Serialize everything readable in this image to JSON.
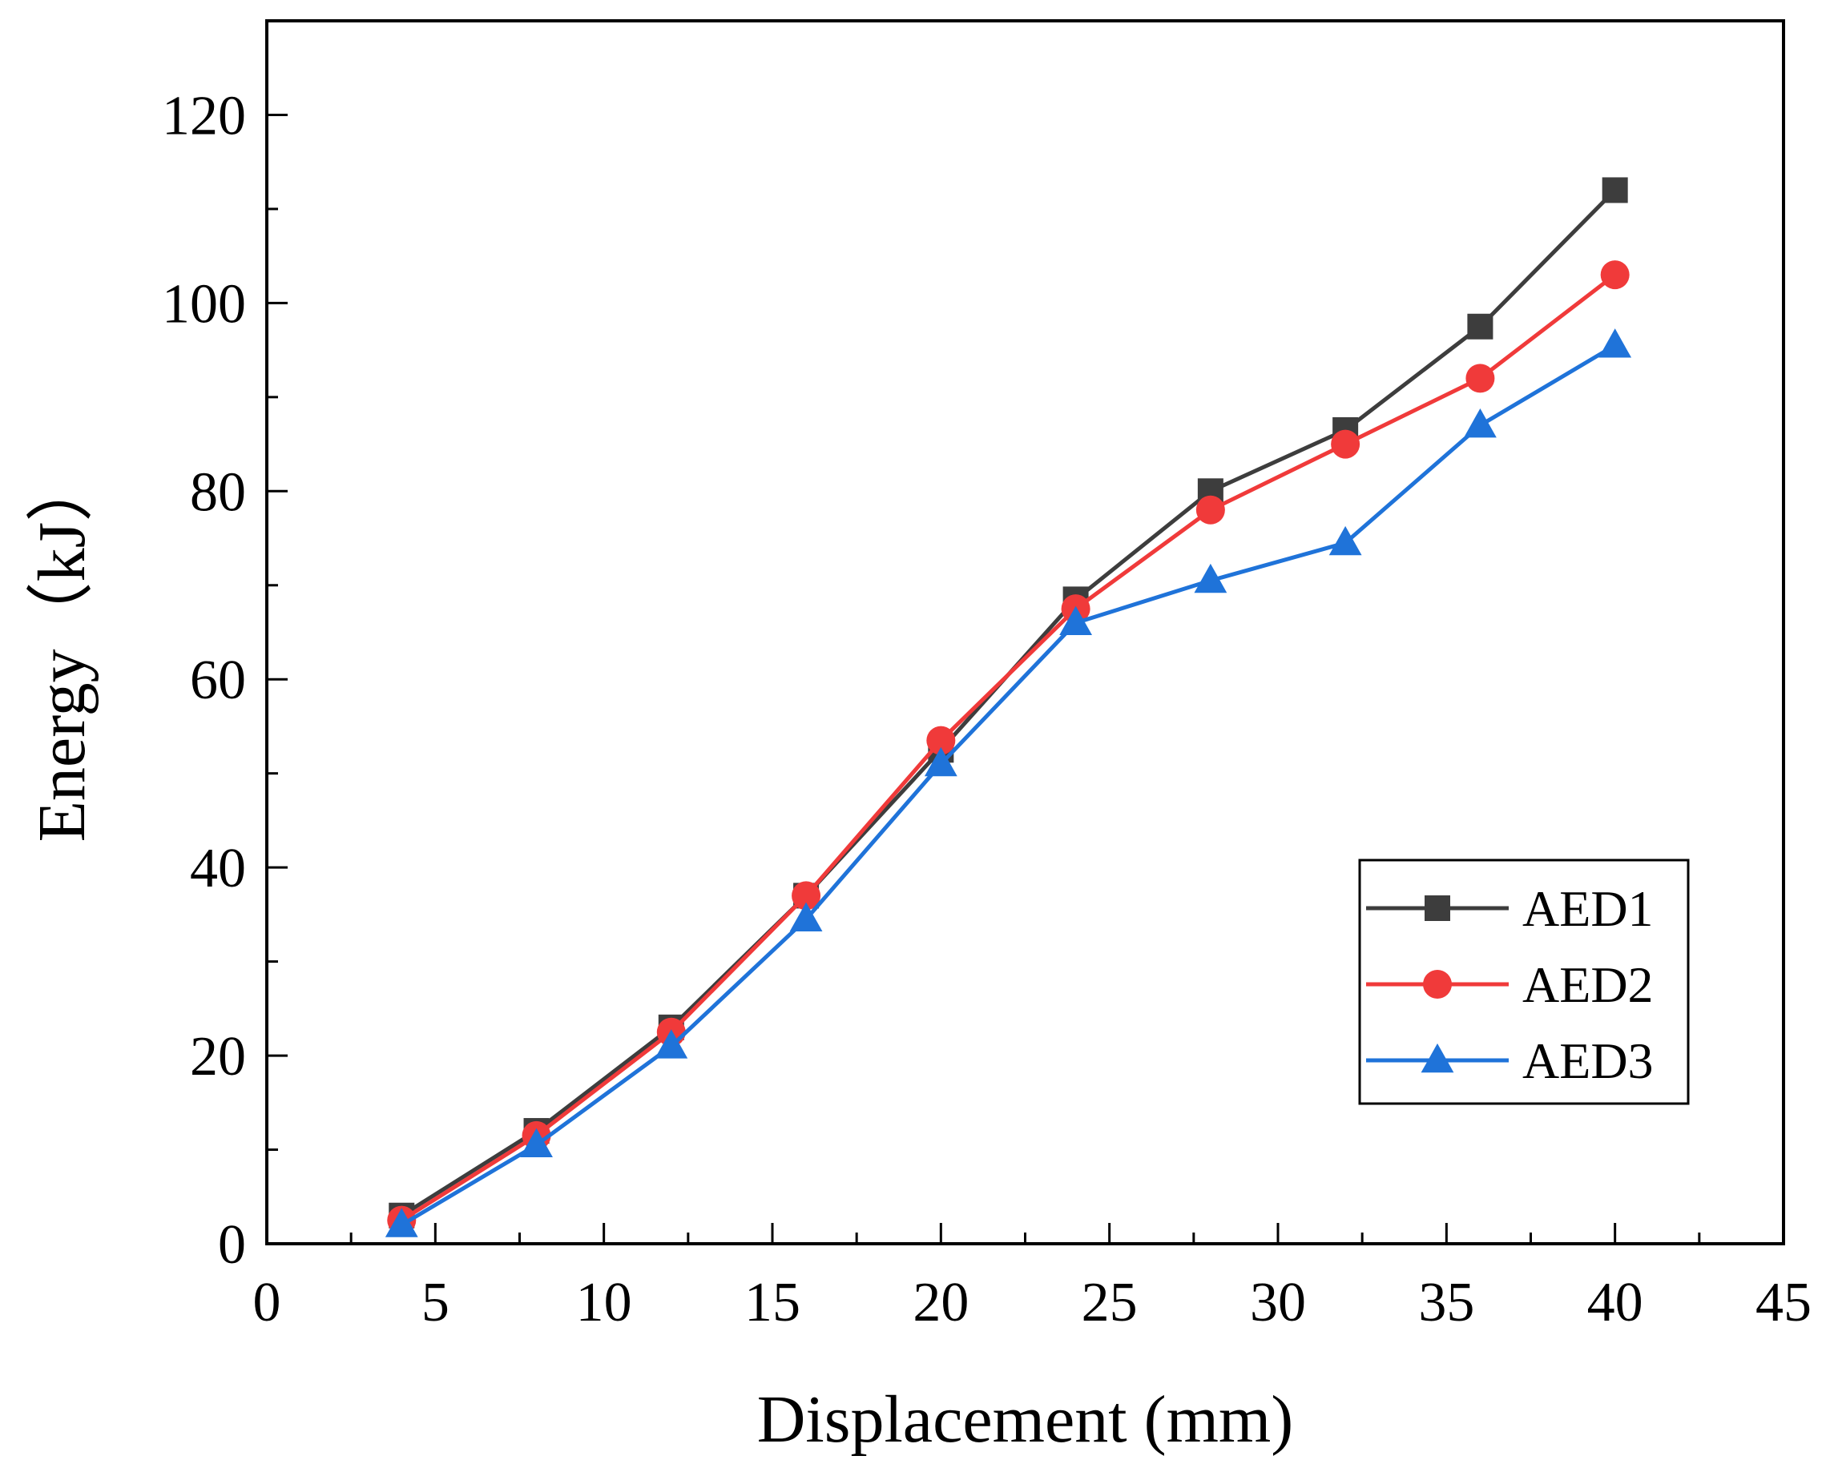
{
  "chart_data": {
    "type": "line",
    "title": "",
    "xlabel": "Displacement (mm)",
    "ylabel": "Energy（kJ）",
    "xlim": [
      0,
      45
    ],
    "ylim": [
      0,
      130
    ],
    "xticks": [
      0,
      5,
      10,
      15,
      20,
      25,
      30,
      35,
      40,
      45
    ],
    "yticks": [
      0,
      20,
      40,
      60,
      80,
      100,
      120
    ],
    "legend_position": "bottom-right",
    "x": [
      4,
      8,
      12,
      16,
      20,
      24,
      28,
      32,
      36,
      40
    ],
    "series": [
      {
        "name": "AED1",
        "marker": "square",
        "color": "#3d3d3d",
        "values": [
          3.0,
          12.0,
          23.0,
          37.0,
          52.5,
          68.5,
          80.0,
          86.5,
          97.5,
          112.0
        ]
      },
      {
        "name": "AED2",
        "marker": "circle",
        "color": "#f03a3a",
        "values": [
          2.5,
          11.5,
          22.5,
          37.0,
          53.5,
          67.5,
          78.0,
          85.0,
          92.0,
          103.0
        ]
      },
      {
        "name": "AED3",
        "marker": "triangle",
        "color": "#1f73d9",
        "values": [
          2.0,
          10.5,
          21.0,
          34.5,
          51.0,
          66.0,
          70.5,
          74.5,
          87.0,
          95.5
        ]
      }
    ]
  }
}
